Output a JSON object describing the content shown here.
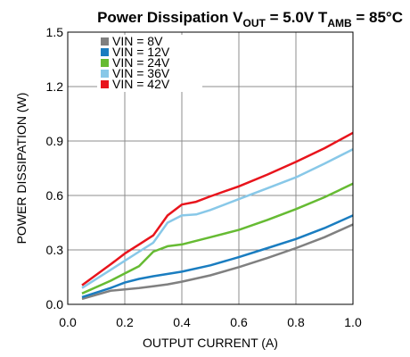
{
  "chart_data": {
    "type": "line",
    "title": {
      "prefix": "Power Dissipation V",
      "vout_sub": "OUT",
      "vout_value": " = 5.0V T",
      "tamb_sub": "AMB",
      "tamb_value": " = 85°C"
    },
    "xlabel": "OUTPUT CURRENT (A)",
    "ylabel": "POWER DISSIPATION (W)",
    "xlim": [
      0,
      1.0
    ],
    "ylim": [
      0,
      1.5
    ],
    "xticks": [
      "0.0",
      "0.2",
      "0.4",
      "0.6",
      "0.8",
      "1.0"
    ],
    "yticks": [
      "0.0",
      "0.3",
      "0.6",
      "0.9",
      "1.2",
      "1.5"
    ],
    "grid": true,
    "legend_position": "top-left",
    "series": [
      {
        "name": "VIN = 8V",
        "color": "#808080",
        "points": [
          [
            0.05,
            0.03
          ],
          [
            0.15,
            0.075
          ],
          [
            0.25,
            0.09
          ],
          [
            0.3,
            0.1
          ],
          [
            0.35,
            0.11
          ],
          [
            0.4,
            0.125
          ],
          [
            0.5,
            0.16
          ],
          [
            0.6,
            0.205
          ],
          [
            0.7,
            0.255
          ],
          [
            0.8,
            0.31
          ],
          [
            0.9,
            0.37
          ],
          [
            1.0,
            0.44
          ]
        ]
      },
      {
        "name": "VIN = 12V",
        "color": "#1a7dc0",
        "points": [
          [
            0.05,
            0.04
          ],
          [
            0.15,
            0.09
          ],
          [
            0.2,
            0.12
          ],
          [
            0.25,
            0.14
          ],
          [
            0.3,
            0.155
          ],
          [
            0.4,
            0.18
          ],
          [
            0.5,
            0.215
          ],
          [
            0.6,
            0.26
          ],
          [
            0.7,
            0.31
          ],
          [
            0.8,
            0.36
          ],
          [
            0.9,
            0.42
          ],
          [
            1.0,
            0.49
          ]
        ]
      },
      {
        "name": "VIN = 24V",
        "color": "#66bb33",
        "points": [
          [
            0.05,
            0.06
          ],
          [
            0.15,
            0.13
          ],
          [
            0.2,
            0.17
          ],
          [
            0.25,
            0.21
          ],
          [
            0.3,
            0.29
          ],
          [
            0.35,
            0.32
          ],
          [
            0.4,
            0.33
          ],
          [
            0.5,
            0.37
          ],
          [
            0.6,
            0.41
          ],
          [
            0.7,
            0.465
          ],
          [
            0.8,
            0.525
          ],
          [
            0.9,
            0.59
          ],
          [
            1.0,
            0.665
          ]
        ]
      },
      {
        "name": "VIN = 36V",
        "color": "#88c8e8",
        "points": [
          [
            0.05,
            0.09
          ],
          [
            0.15,
            0.19
          ],
          [
            0.2,
            0.24
          ],
          [
            0.25,
            0.29
          ],
          [
            0.3,
            0.34
          ],
          [
            0.35,
            0.45
          ],
          [
            0.4,
            0.49
          ],
          [
            0.45,
            0.495
          ],
          [
            0.5,
            0.52
          ],
          [
            0.6,
            0.58
          ],
          [
            0.7,
            0.64
          ],
          [
            0.8,
            0.7
          ],
          [
            0.9,
            0.775
          ],
          [
            1.0,
            0.855
          ]
        ]
      },
      {
        "name": "VIN = 42V",
        "color": "#e8141c",
        "points": [
          [
            0.05,
            0.105
          ],
          [
            0.15,
            0.22
          ],
          [
            0.2,
            0.28
          ],
          [
            0.25,
            0.33
          ],
          [
            0.3,
            0.38
          ],
          [
            0.35,
            0.49
          ],
          [
            0.4,
            0.55
          ],
          [
            0.45,
            0.565
          ],
          [
            0.5,
            0.595
          ],
          [
            0.6,
            0.65
          ],
          [
            0.7,
            0.715
          ],
          [
            0.8,
            0.785
          ],
          [
            0.9,
            0.86
          ],
          [
            1.0,
            0.945
          ]
        ]
      }
    ]
  }
}
